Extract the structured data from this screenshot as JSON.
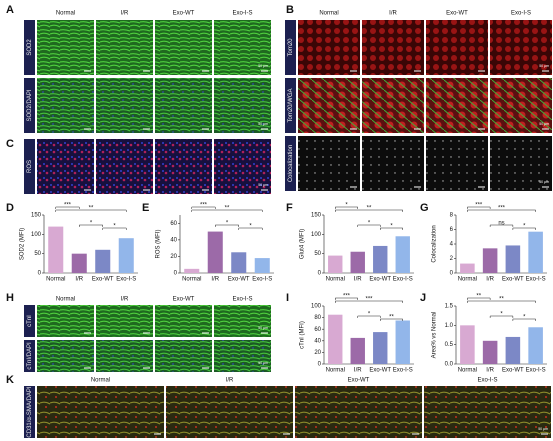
{
  "panel_labels": [
    "A",
    "B",
    "C",
    "D",
    "E",
    "F",
    "G",
    "H",
    "I",
    "J",
    "K"
  ],
  "columns": [
    "Normal",
    "I/R",
    "Exo-WT",
    "Exo-I-S"
  ],
  "image_rows": {
    "A": [
      "SOD2",
      "SOD2/DAPI"
    ],
    "B": [
      "Tom20",
      "Tom20/WGA",
      "Colocalization"
    ],
    "C": [
      "ROS"
    ],
    "H": [
      "cTnI",
      "cTnI/DAPI"
    ],
    "K": [
      "CD31/α-SMA/DAPI"
    ]
  },
  "scale_label": "50 μm",
  "chart_data": [
    {
      "type": "bar",
      "y_label": "SOD2 (MFI)",
      "categories": [
        "Normal",
        "I/R",
        "Exo-WT",
        "Exo-I-S"
      ],
      "values": [
        120,
        50,
        60,
        90
      ],
      "colors": [
        "#d8a9d2",
        "#9c6aa8",
        "#7c88c6",
        "#92b6ea"
      ],
      "ylim": [
        0,
        150
      ],
      "yticks": [
        0,
        50,
        100,
        150
      ],
      "significance": [
        "***",
        "**",
        "*",
        "*"
      ]
    },
    {
      "type": "bar",
      "y_label": "ROS (MFI)",
      "categories": [
        "Normal",
        "I/R",
        "Exo-WT",
        "Exo-I-S"
      ],
      "values": [
        5,
        50,
        25,
        18
      ],
      "colors": [
        "#d8a9d2",
        "#9c6aa8",
        "#7c88c6",
        "#92b6ea"
      ],
      "ylim": [
        0,
        70
      ],
      "yticks": [
        0,
        20,
        40,
        60
      ],
      "significance": [
        "***",
        "**",
        "*",
        "*"
      ]
    },
    {
      "type": "bar",
      "y_label": "Glut4 (MFI)",
      "categories": [
        "Normal",
        "I/R",
        "Exo-WT",
        "Exo-I-S"
      ],
      "values": [
        45,
        55,
        70,
        95
      ],
      "colors": [
        "#d8a9d2",
        "#9c6aa8",
        "#7c88c6",
        "#92b6ea"
      ],
      "ylim": [
        0,
        150
      ],
      "yticks": [
        0,
        50,
        100,
        150
      ],
      "significance": [
        "*",
        "**",
        "*",
        "*"
      ]
    },
    {
      "type": "bar",
      "y_label": "Colocalization",
      "categories": [
        "Normal",
        "I/R",
        "Exo-WT",
        "Exo-I-S"
      ],
      "values": [
        1.3,
        3.4,
        3.8,
        5.7
      ],
      "colors": [
        "#d8a9d2",
        "#9c6aa8",
        "#7c88c6",
        "#92b6ea"
      ],
      "ylim": [
        0,
        8
      ],
      "yticks": [
        0,
        2,
        4,
        6,
        8
      ],
      "significance": [
        "***",
        "***",
        "ns",
        "*"
      ]
    },
    {
      "type": "bar",
      "y_label": "cTnI (MFI)",
      "categories": [
        "Normal",
        "I/R",
        "Exo-WT",
        "Exo-I-S"
      ],
      "values": [
        85,
        45,
        55,
        75
      ],
      "colors": [
        "#d8a9d2",
        "#9c6aa8",
        "#7c88c6",
        "#92b6ea"
      ],
      "ylim": [
        0,
        100
      ],
      "yticks": [
        0,
        20,
        40,
        60,
        80,
        100
      ],
      "significance": [
        "***",
        "***",
        "*",
        "**"
      ]
    },
    {
      "type": "bar",
      "y_label": "Area% vs Normal",
      "categories": [
        "Normal",
        "I/R",
        "Exo-WT",
        "Exo-I-S"
      ],
      "values": [
        1.0,
        0.6,
        0.7,
        0.95
      ],
      "colors": [
        "#d8a9d2",
        "#9c6aa8",
        "#7c88c6",
        "#92b6ea"
      ],
      "ylim": [
        0,
        1.5
      ],
      "yticks": [
        {
          "value": 0,
          "label": "0.0"
        },
        {
          "value": 0.5,
          "label": "0.5"
        },
        {
          "value": 1,
          "label": "1.0"
        },
        {
          "value": 1.5,
          "label": "1.5"
        }
      ],
      "significance": [
        "**",
        "**",
        "*",
        "*"
      ]
    }
  ]
}
